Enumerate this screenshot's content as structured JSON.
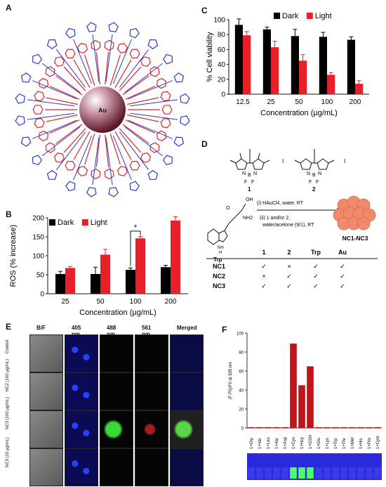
{
  "panels": {
    "a": {
      "letter": "A",
      "center_label": "Au"
    },
    "b": {
      "letter": "B"
    },
    "c": {
      "letter": "C"
    },
    "d": {
      "letter": "D"
    },
    "e": {
      "letter": "E"
    },
    "f": {
      "letter": "F"
    }
  },
  "chart_data": [
    {
      "id": "B",
      "type": "bar",
      "categories": [
        "25",
        "50",
        "100",
        "200"
      ],
      "series": [
        {
          "name": "Dark",
          "values": [
            52,
            52,
            63,
            70
          ],
          "errors": [
            7,
            18,
            5,
            5
          ],
          "color": "#000000"
        },
        {
          "name": "Light",
          "values": [
            68,
            103,
            146,
            193
          ],
          "errors": [
            4,
            14,
            5,
            10
          ],
          "color": "#e8202a"
        }
      ],
      "xlabel": "Concentration (µg/mL)",
      "ylabel": "ROS (% increase)",
      "ylim": [
        0,
        200
      ],
      "yticks": [
        "0",
        "50",
        "100",
        "150",
        "200"
      ],
      "legend": "top-left",
      "annotation": "*"
    },
    {
      "id": "C",
      "type": "bar",
      "categories": [
        "12.5",
        "25",
        "50",
        "100",
        "200"
      ],
      "series": [
        {
          "name": "Dark",
          "values": [
            93,
            87,
            78,
            77,
            73
          ],
          "errors": [
            8,
            3,
            9,
            6,
            4
          ],
          "color": "#000000"
        },
        {
          "name": "Light",
          "values": [
            79,
            63,
            45,
            26,
            14
          ],
          "errors": [
            5,
            8,
            8,
            3,
            4
          ],
          "color": "#e8202a"
        }
      ],
      "xlabel": "Concentration (µg/mL)",
      "ylabel": "% Cell viability",
      "ylim": [
        0,
        100
      ],
      "yticks": [
        "0",
        "20",
        "40",
        "60",
        "80",
        "100"
      ],
      "legend": "top-right"
    },
    {
      "id": "F",
      "type": "bar",
      "categories": [
        "1+Gly",
        "1+Val",
        "1+Leu",
        "1+Ala",
        "1+Asp",
        "1+Cys",
        "1+Hcy",
        "1+GSH",
        "1+Glu",
        "1+Lys",
        "1+Trp",
        "1+Thr",
        "1+Met",
        "1+His",
        "1+Pro",
        "1+Cyst"
      ],
      "values": [
        0,
        0,
        0,
        0,
        0,
        89,
        45,
        65,
        0,
        0,
        0,
        0,
        0,
        0,
        0,
        0
      ],
      "ylabel": "(F-F0)/F0 at 505 nm",
      "ylim": [
        0,
        100
      ],
      "yticks": [
        "0",
        "20",
        "40",
        "60",
        "80",
        "100"
      ],
      "color": "#c0141c"
    }
  ],
  "scheme": {
    "compounds": [
      "1",
      "2"
    ],
    "halogen": "I",
    "atom_labels": [
      "N",
      "B",
      "N",
      "F",
      "F"
    ],
    "trp": {
      "name": "Trp",
      "oh": "OH",
      "o": "O",
      "nh2": "NH2",
      "nh": "NH",
      "h": "H"
    },
    "step1": "(i) HAuCl4, water, RT",
    "step2": "(ii) 1 and/or 2,",
    "step3": "water/acetone (9/1), RT",
    "product": "NC1-NC3",
    "table": {
      "headers": [
        "",
        "1",
        "2",
        "Trp",
        "Au"
      ],
      "rows": [
        [
          "NC1",
          "✓",
          "×",
          "✓",
          "✓"
        ],
        [
          "NC2",
          "×",
          "✓",
          "✓",
          "✓"
        ],
        [
          "NC3",
          "✓",
          "✓",
          "✓",
          "✓"
        ]
      ]
    }
  },
  "microscopy": {
    "columns": [
      "B/F",
      "405 nm",
      "488 nm",
      "561 nm",
      "Merged"
    ],
    "rows": [
      "Control",
      "NC2 (100 µg/mL)",
      "NC3 (100 µg/mL)",
      "NC3 (10 µg/mL)"
    ]
  }
}
